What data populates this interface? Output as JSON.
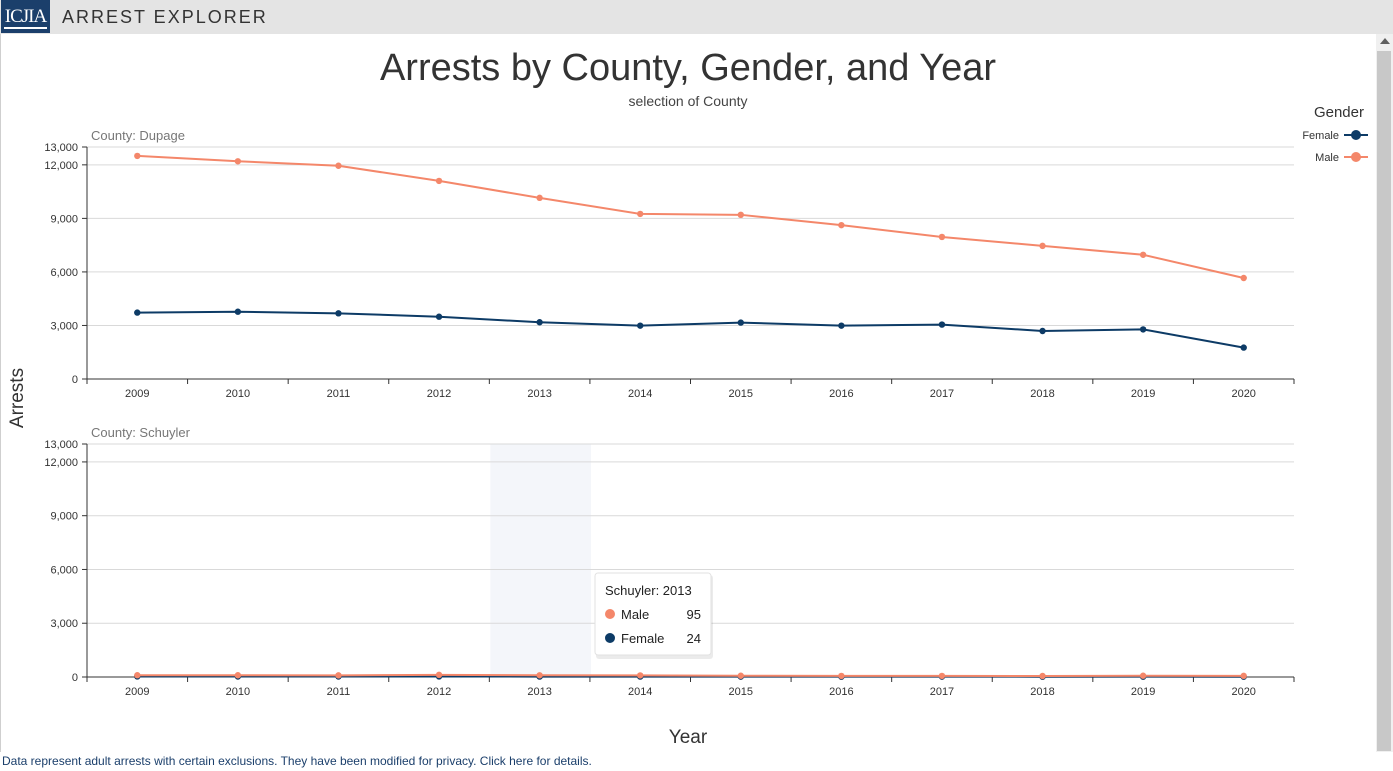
{
  "app": {
    "logo_text": "ICJIA",
    "title": "ARREST EXPLORER"
  },
  "footer": {
    "note": "Data represent adult arrests with certain exclusions. They have been modified for privacy. Click here for details."
  },
  "colors": {
    "female": "#0d3b66",
    "male": "#f4876a",
    "highlight": "#f4f6fa",
    "grid": "#d9d9d9",
    "axis": "#333333"
  },
  "chart_data": {
    "type": "line",
    "title": "Arrests by County, Gender, and Year",
    "subtitle": "selection of County",
    "xlabel": "Year",
    "ylabel": "Arrests",
    "legend": {
      "title": "Gender",
      "placement": "top-right",
      "entries": [
        "Female",
        "Male"
      ]
    },
    "categories": [
      "2009",
      "2010",
      "2011",
      "2012",
      "2013",
      "2014",
      "2015",
      "2016",
      "2017",
      "2018",
      "2019",
      "2020"
    ],
    "ylim": [
      0,
      13000
    ],
    "yticks": [
      "0",
      "3,000",
      "6,000",
      "9,000",
      "12,000",
      "13,000"
    ],
    "ytick_values": [
      0,
      3000,
      6000,
      9000,
      12000,
      13000
    ],
    "panels": [
      {
        "label": "County: Dupage",
        "series": [
          {
            "name": "Female",
            "values": [
              3720,
              3770,
              3680,
              3490,
              3180,
              2990,
              3160,
              2990,
              3050,
              2690,
              2780,
              1760
            ]
          },
          {
            "name": "Male",
            "values": [
              12500,
              12200,
              11950,
              11100,
              10150,
              9250,
              9200,
              8620,
              7960,
              7460,
              6960,
              5660
            ]
          }
        ]
      },
      {
        "label": "County: Schuyler",
        "highlight_category": "2013",
        "series": [
          {
            "name": "Female",
            "values": [
              30,
              28,
              26,
              30,
              24,
              22,
              20,
              18,
              19,
              17,
              18,
              16
            ]
          },
          {
            "name": "Male",
            "values": [
              100,
              98,
              90,
              120,
              95,
              88,
              70,
              60,
              62,
              58,
              72,
              65
            ]
          }
        ]
      }
    ],
    "tooltip": {
      "title": "Schuyler: 2013",
      "rows": [
        {
          "name": "Male",
          "value": "95"
        },
        {
          "name": "Female",
          "value": "24"
        }
      ]
    }
  }
}
